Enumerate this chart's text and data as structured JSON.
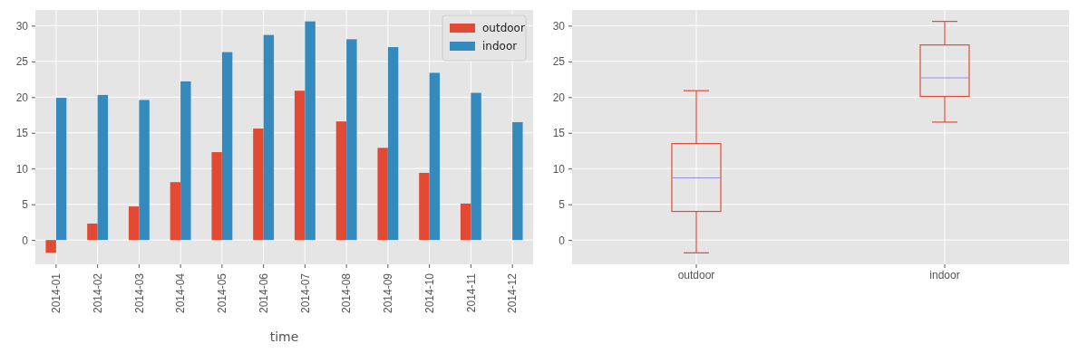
{
  "chart_data": [
    {
      "type": "bar",
      "xlabel": "time",
      "categories": [
        "2014-01",
        "2014-02",
        "2014-03",
        "2014-04",
        "2014-05",
        "2014-06",
        "2014-07",
        "2014-08",
        "2014-09",
        "2014-10",
        "2014-11",
        "2014-12"
      ],
      "series": [
        {
          "name": "outdoor",
          "color": "#e24a33",
          "values": [
            -1.8,
            2.3,
            4.7,
            8.1,
            12.3,
            15.6,
            20.9,
            16.6,
            12.9,
            9.4,
            5.1,
            null
          ]
        },
        {
          "name": "indoor",
          "color": "#348abd",
          "values": [
            19.9,
            20.3,
            19.6,
            22.2,
            26.3,
            28.7,
            30.6,
            28.1,
            27.0,
            23.4,
            20.6,
            16.5
          ]
        }
      ],
      "ylim": [
        -3.4,
        32.2
      ],
      "yticks": [
        0,
        5,
        10,
        15,
        20,
        25,
        30
      ],
      "grid": true,
      "legend": "top right"
    },
    {
      "type": "box",
      "categories": [
        "outdoor",
        "indoor"
      ],
      "series": [
        {
          "color": "#e24a33",
          "boxes": [
            {
              "low": -1.8,
              "q1": 4.0,
              "median": 8.7,
              "q3": 13.5,
              "high": 20.9
            },
            {
              "low": 16.5,
              "q1": 20.1,
              "median": 22.7,
              "q3": 27.3,
              "high": 30.6
            }
          ]
        }
      ],
      "ylim": [
        -3.4,
        32.2
      ],
      "yticks": [
        0,
        5,
        10,
        15,
        20,
        25,
        30
      ],
      "grid": true
    }
  ]
}
